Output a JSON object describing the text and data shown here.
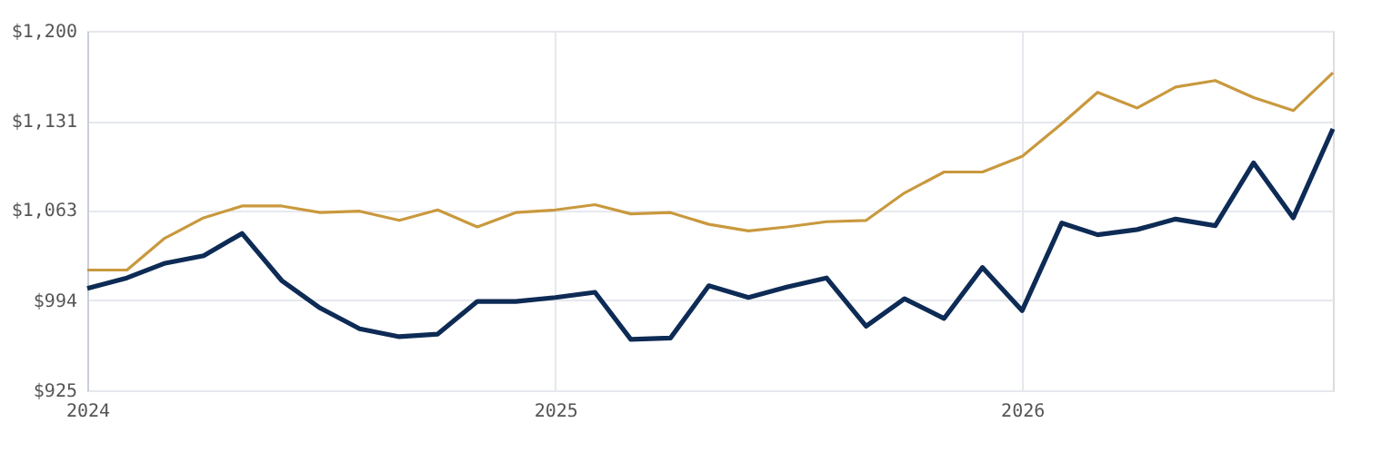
{
  "chart_data": {
    "type": "line",
    "x": [
      "2024-01",
      "2024-02",
      "2024-03",
      "2024-04",
      "2024-05",
      "2024-06",
      "2024-07",
      "2024-08",
      "2024-09",
      "2024-10",
      "2024-11",
      "2024-12",
      "2025-01",
      "2025-02",
      "2025-03",
      "2025-04",
      "2025-05",
      "2025-06",
      "2025-07",
      "2025-08",
      "2025-09",
      "2025-10",
      "2025-11",
      "2025-12",
      "2026-01",
      "2026-02",
      "2026-03",
      "2026-04",
      "2026-05",
      "2026-06",
      "2026-07",
      "2026-08",
      "2026-09"
    ],
    "series": [
      {
        "color": "#0d2b55",
        "values": [
          1003,
          1011,
          1022,
          1028,
          1045,
          1009,
          988,
          972,
          966,
          968,
          993,
          993,
          996,
          1000,
          964,
          965,
          1005,
          996,
          1004,
          1011,
          974,
          995,
          980,
          1019,
          986,
          1053,
          1044,
          1048,
          1056,
          1051,
          1099,
          1057,
          1125
        ]
      },
      {
        "color": "#c9993e",
        "values": [
          1017,
          1017,
          1041,
          1057,
          1066,
          1066,
          1061,
          1062,
          1055,
          1063,
          1050,
          1061,
          1063,
          1067,
          1060,
          1061,
          1052,
          1047,
          1050,
          1054,
          1055,
          1076,
          1092,
          1092,
          1104,
          1129,
          1153,
          1141,
          1157,
          1162,
          1149,
          1139,
          1168
        ]
      }
    ],
    "xlim": [
      "2024-01",
      "2026-09"
    ],
    "xticks": [
      {
        "value": "2024-01",
        "label": "2024"
      },
      {
        "value": "2025-01",
        "label": "2025"
      },
      {
        "value": "2026-01",
        "label": "2026"
      }
    ],
    "ylim": [
      925,
      1200
    ],
    "yticks": [
      {
        "value": 925,
        "label": "$925"
      },
      {
        "value": 994,
        "label": "$994"
      },
      {
        "value": 1063,
        "label": "$1,063"
      },
      {
        "value": 1131,
        "label": "$1,131"
      },
      {
        "value": 1200,
        "label": "$1,200"
      }
    ],
    "grid": true,
    "marker": "none",
    "line_style": "solid"
  }
}
